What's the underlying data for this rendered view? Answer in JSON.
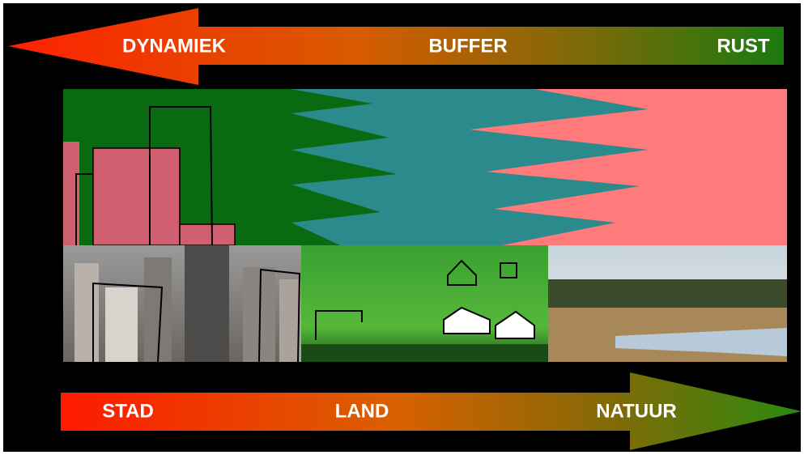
{
  "top_arrow": {
    "labels": [
      "DYNAMIEK",
      "BUFFER",
      "RUST"
    ]
  },
  "bottom_arrow": {
    "labels": [
      "STAD",
      "LAND",
      "NATUUR"
    ]
  }
}
